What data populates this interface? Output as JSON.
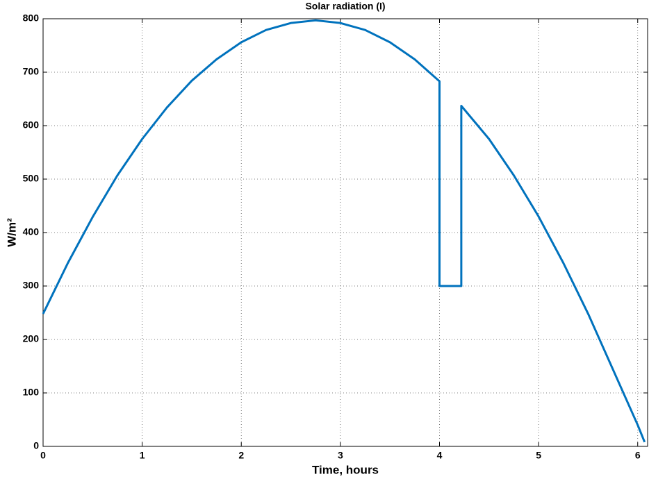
{
  "chart_data": {
    "type": "line",
    "title": "Solar radiation (I)",
    "x_label": "Time, hours",
    "y_label": "W/m²",
    "xlim": [
      0,
      6.1
    ],
    "ylim": [
      0,
      800
    ],
    "xticks": [
      0,
      1,
      2,
      3,
      4,
      5,
      6
    ],
    "yticks": [
      0,
      100,
      200,
      300,
      400,
      500,
      600,
      700,
      800
    ],
    "grid": true,
    "series": [
      {
        "name": "I",
        "color": "#0072bd",
        "x": [
          0,
          0.25,
          0.5,
          0.75,
          1,
          1.25,
          1.5,
          1.75,
          2,
          2.25,
          2.5,
          2.75,
          3,
          3.25,
          3.5,
          3.75,
          4,
          4,
          4.22,
          4.22,
          4.5,
          4.75,
          5,
          5.25,
          5.5,
          5.75,
          6,
          6.07
        ],
        "values": [
          248,
          343,
          429,
          507,
          575,
          634,
          684,
          724,
          756,
          779,
          792,
          797,
          792,
          779,
          756,
          724,
          683,
          300,
          300,
          637,
          575,
          507,
          430,
          343,
          248,
          144,
          40,
          8
        ]
      }
    ]
  }
}
